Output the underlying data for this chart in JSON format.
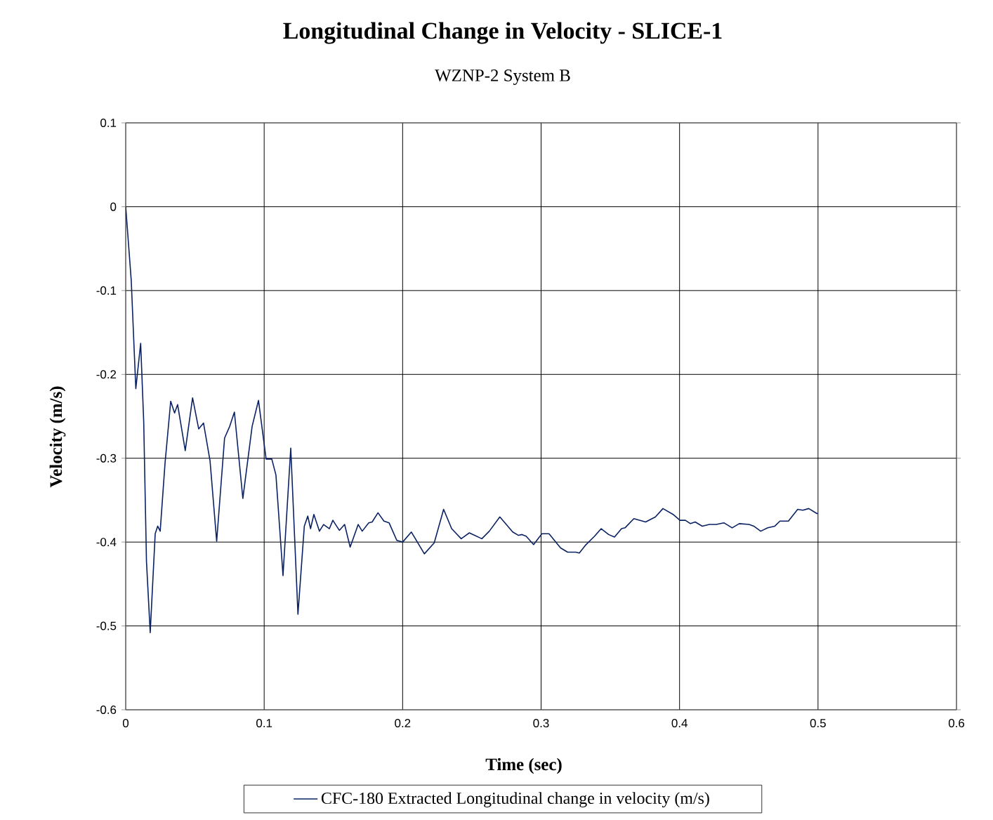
{
  "chart_data": {
    "type": "line",
    "title": "Longitudinal Change in Velocity - SLICE-1",
    "subtitle": "WZNP-2 System B",
    "xlabel": "Time (sec)",
    "ylabel": "Velocity (m/s)",
    "xlim": [
      0,
      0.6
    ],
    "ylim": [
      -0.6,
      0.1
    ],
    "xticks": [
      0,
      0.1,
      0.2,
      0.3,
      0.4,
      0.5,
      0.6
    ],
    "yticks": [
      0.1,
      0,
      -0.1,
      -0.2,
      -0.3,
      -0.4,
      -0.5,
      -0.6
    ],
    "grid": true,
    "legend": "bottom",
    "marker": "none",
    "line_style": "solid",
    "series": [
      {
        "name": "CFC-180 Extracted Longitudinal change in velocity (m/s)",
        "color": "#0a2263",
        "x": [
          0,
          0.004,
          0.0073,
          0.0108,
          0.013,
          0.015,
          0.0177,
          0.0213,
          0.0231,
          0.0249,
          0.0284,
          0.0325,
          0.0353,
          0.0375,
          0.043,
          0.0483,
          0.0527,
          0.0562,
          0.0609,
          0.0657,
          0.0714,
          0.0751,
          0.0785,
          0.0846,
          0.0913,
          0.0959,
          0.1014,
          0.1055,
          0.1085,
          0.1136,
          0.1192,
          0.1244,
          0.129,
          0.1315,
          0.1335,
          0.1359,
          0.1399,
          0.1429,
          0.1471,
          0.1496,
          0.1543,
          0.1581,
          0.1621,
          0.1679,
          0.1708,
          0.1755,
          0.178,
          0.1822,
          0.1865,
          0.1902,
          0.1958,
          0.2,
          0.2063,
          0.2157,
          0.2228,
          0.2296,
          0.2354,
          0.2423,
          0.2482,
          0.2572,
          0.2626,
          0.2702,
          0.2795,
          0.2837,
          0.2862,
          0.2892,
          0.2946,
          0.3006,
          0.3057,
          0.3141,
          0.3192,
          0.3251,
          0.3276,
          0.3319,
          0.3386,
          0.3434,
          0.3488,
          0.353,
          0.3581,
          0.3606,
          0.367,
          0.3755,
          0.3826,
          0.388,
          0.3953,
          0.4003,
          0.4042,
          0.4079,
          0.4113,
          0.4164,
          0.4215,
          0.4265,
          0.432,
          0.438,
          0.4431,
          0.4502,
          0.4536,
          0.4586,
          0.4637,
          0.4688,
          0.4725,
          0.4786,
          0.4853,
          0.489,
          0.4933,
          0.4992,
          0.5
        ],
        "values": [
          0,
          -0.088,
          -0.217,
          -0.163,
          -0.256,
          -0.423,
          -0.508,
          -0.39,
          -0.381,
          -0.387,
          -0.306,
          -0.232,
          -0.246,
          -0.236,
          -0.291,
          -0.228,
          -0.265,
          -0.258,
          -0.303,
          -0.399,
          -0.276,
          -0.262,
          -0.245,
          -0.348,
          -0.262,
          -0.231,
          -0.301,
          -0.301,
          -0.32,
          -0.44,
          -0.288,
          -0.486,
          -0.381,
          -0.369,
          -0.384,
          -0.367,
          -0.387,
          -0.379,
          -0.384,
          -0.374,
          -0.386,
          -0.379,
          -0.406,
          -0.379,
          -0.387,
          -0.377,
          -0.376,
          -0.365,
          -0.375,
          -0.377,
          -0.398,
          -0.4,
          -0.388,
          -0.414,
          -0.401,
          -0.361,
          -0.384,
          -0.396,
          -0.389,
          -0.396,
          -0.387,
          -0.37,
          -0.388,
          -0.392,
          -0.391,
          -0.393,
          -0.403,
          -0.39,
          -0.39,
          -0.407,
          -0.412,
          -0.412,
          -0.413,
          -0.404,
          -0.393,
          -0.384,
          -0.391,
          -0.394,
          -0.384,
          -0.383,
          -0.372,
          -0.376,
          -0.37,
          -0.36,
          -0.367,
          -0.374,
          -0.374,
          -0.378,
          -0.376,
          -0.381,
          -0.379,
          -0.379,
          -0.377,
          -0.383,
          -0.378,
          -0.379,
          -0.381,
          -0.387,
          -0.383,
          -0.381,
          -0.375,
          -0.375,
          -0.361,
          -0.362,
          -0.36,
          -0.366,
          -0.366
        ]
      }
    ]
  }
}
